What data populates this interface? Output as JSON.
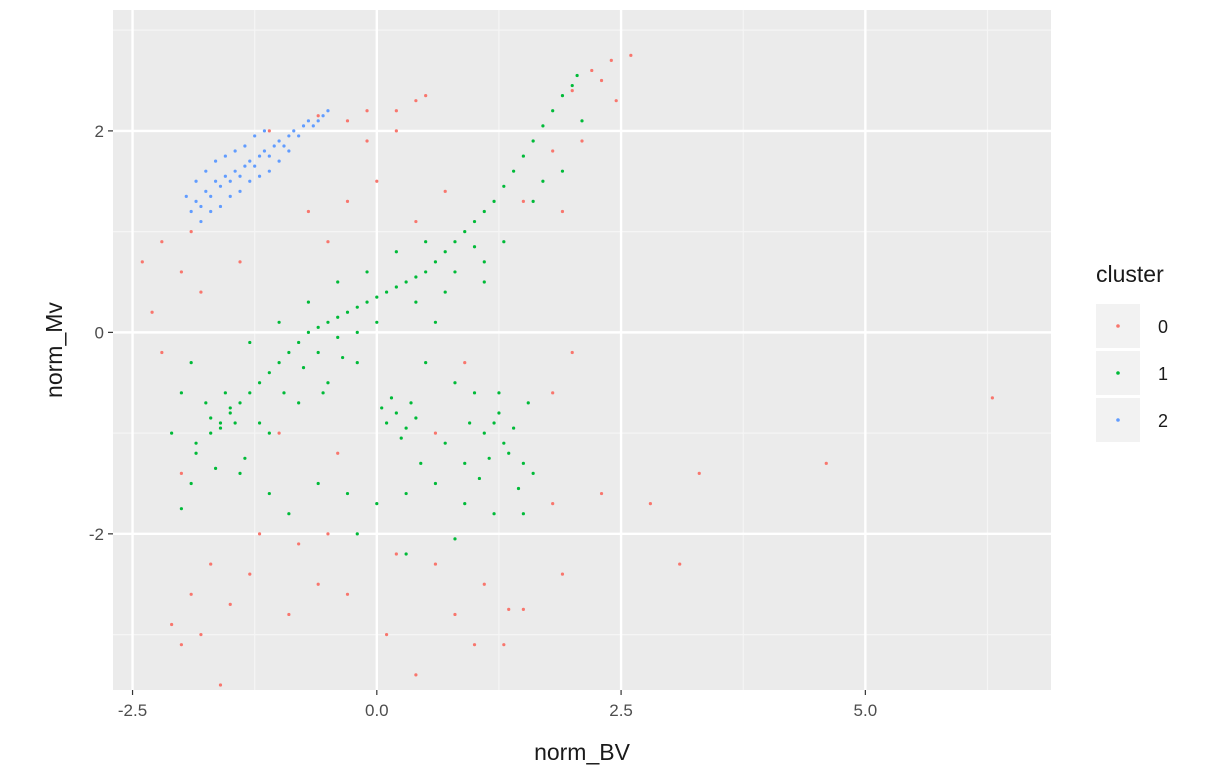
{
  "chart_data": {
    "type": "scatter",
    "xlabel": "norm_BV",
    "ylabel": "norm_Mv",
    "xlim": [
      -2.7,
      6.9
    ],
    "ylim": [
      3.2,
      -3.55
    ],
    "y_reversed": true,
    "x_ticks": [
      -2.5,
      0.0,
      2.5,
      5.0
    ],
    "x_tick_labels": [
      "-2.5",
      "0.0",
      "2.5",
      "5.0"
    ],
    "y_ticks": [
      -2,
      0,
      2
    ],
    "y_tick_labels": [
      "-2",
      "0",
      "2"
    ],
    "grid": true,
    "legend": {
      "title": "cluster",
      "placement": "right"
    },
    "series": [
      {
        "name": "0",
        "color": "#F8766D",
        "points": [
          [
            -2.1,
            -2.9
          ],
          [
            -2.0,
            -3.1
          ],
          [
            -1.8,
            -3.0
          ],
          [
            -1.6,
            -3.5
          ],
          [
            -1.9,
            -2.6
          ],
          [
            -1.5,
            -2.7
          ],
          [
            -1.3,
            -2.4
          ],
          [
            -1.7,
            -2.3
          ],
          [
            -0.9,
            -2.8
          ],
          [
            -0.6,
            -2.5
          ],
          [
            -0.3,
            -2.6
          ],
          [
            0.1,
            -3.0
          ],
          [
            0.4,
            -3.4
          ],
          [
            0.8,
            -2.8
          ],
          [
            1.0,
            -3.1
          ],
          [
            1.3,
            -3.1
          ],
          [
            1.35,
            -2.75
          ],
          [
            1.5,
            -2.75
          ],
          [
            1.1,
            -2.5
          ],
          [
            0.6,
            -2.3
          ],
          [
            -1.2,
            -2.0
          ],
          [
            -0.8,
            -2.1
          ],
          [
            -0.5,
            -2.0
          ],
          [
            0.2,
            -2.2
          ],
          [
            1.9,
            -2.4
          ],
          [
            1.8,
            -1.7
          ],
          [
            2.3,
            -1.6
          ],
          [
            2.8,
            -1.7
          ],
          [
            3.1,
            -2.3
          ],
          [
            3.3,
            -1.4
          ],
          [
            4.6,
            -1.3
          ],
          [
            6.3,
            -0.65
          ],
          [
            -2.2,
            -0.2
          ],
          [
            -2.3,
            0.2
          ],
          [
            -2.4,
            0.7
          ],
          [
            -2.0,
            0.6
          ],
          [
            -1.4,
            0.7
          ],
          [
            -1.9,
            1.0
          ],
          [
            -2.2,
            0.9
          ],
          [
            -1.8,
            0.4
          ],
          [
            -0.5,
            0.9
          ],
          [
            -0.7,
            1.2
          ],
          [
            -0.3,
            1.3
          ],
          [
            0.0,
            1.5
          ],
          [
            0.4,
            1.1
          ],
          [
            0.7,
            1.4
          ],
          [
            -0.3,
            2.1
          ],
          [
            -0.1,
            2.2
          ],
          [
            0.2,
            2.2
          ],
          [
            0.4,
            2.3
          ],
          [
            0.5,
            2.35
          ],
          [
            0.2,
            2.0
          ],
          [
            -0.1,
            1.9
          ],
          [
            1.5,
            1.3
          ],
          [
            1.8,
            1.8
          ],
          [
            2.0,
            2.4
          ],
          [
            2.2,
            2.6
          ],
          [
            2.4,
            2.7
          ],
          [
            2.6,
            2.75
          ],
          [
            2.3,
            2.5
          ],
          [
            2.1,
            1.9
          ],
          [
            2.45,
            2.3
          ],
          [
            1.9,
            1.2
          ],
          [
            0.9,
            -0.3
          ],
          [
            -1.0,
            -1.0
          ],
          [
            -0.4,
            -1.2
          ],
          [
            0.6,
            -1.0
          ],
          [
            1.8,
            -0.6
          ],
          [
            2.0,
            -0.2
          ],
          [
            -2.0,
            -1.4
          ],
          [
            -1.1,
            2.0
          ],
          [
            -0.6,
            2.15
          ]
        ]
      },
      {
        "name": "1",
        "color": "#00BA38",
        "points": [
          [
            -2.0,
            -1.75
          ],
          [
            -1.9,
            -1.5
          ],
          [
            -1.85,
            -1.2
          ],
          [
            -1.7,
            -1.0
          ],
          [
            -1.6,
            -0.9
          ],
          [
            -1.5,
            -0.8
          ],
          [
            -1.4,
            -0.7
          ],
          [
            -1.3,
            -0.6
          ],
          [
            -1.2,
            -0.5
          ],
          [
            -1.1,
            -0.4
          ],
          [
            -1.0,
            -0.3
          ],
          [
            -0.9,
            -0.2
          ],
          [
            -0.8,
            -0.1
          ],
          [
            -0.7,
            0.0
          ],
          [
            -0.6,
            0.05
          ],
          [
            -0.5,
            0.1
          ],
          [
            -0.4,
            0.15
          ],
          [
            -0.3,
            0.2
          ],
          [
            -0.2,
            0.25
          ],
          [
            -0.1,
            0.3
          ],
          [
            0.0,
            0.35
          ],
          [
            0.1,
            0.4
          ],
          [
            0.2,
            0.45
          ],
          [
            0.3,
            0.5
          ],
          [
            0.4,
            0.55
          ],
          [
            0.5,
            0.6
          ],
          [
            0.6,
            0.7
          ],
          [
            0.7,
            0.8
          ],
          [
            0.8,
            0.9
          ],
          [
            0.9,
            1.0
          ],
          [
            1.0,
            1.1
          ],
          [
            1.1,
            1.2
          ],
          [
            1.2,
            1.3
          ],
          [
            1.3,
            1.45
          ],
          [
            1.4,
            1.6
          ],
          [
            1.5,
            1.75
          ],
          [
            1.6,
            1.9
          ],
          [
            1.7,
            2.05
          ],
          [
            1.8,
            2.2
          ],
          [
            1.9,
            2.35
          ],
          [
            2.0,
            2.45
          ],
          [
            2.05,
            2.55
          ],
          [
            -1.7,
            -0.85
          ],
          [
            -1.6,
            -0.95
          ],
          [
            -1.5,
            -0.75
          ],
          [
            -1.75,
            -0.7
          ],
          [
            -1.55,
            -0.6
          ],
          [
            -1.45,
            -0.9
          ],
          [
            0.1,
            -0.9
          ],
          [
            0.2,
            -0.8
          ],
          [
            0.3,
            -0.95
          ],
          [
            0.35,
            -0.7
          ],
          [
            0.15,
            -0.65
          ],
          [
            0.25,
            -1.05
          ],
          [
            0.4,
            -0.85
          ],
          [
            0.05,
            -0.75
          ],
          [
            1.1,
            -1.0
          ],
          [
            1.2,
            -0.9
          ],
          [
            1.3,
            -1.1
          ],
          [
            1.4,
            -0.95
          ],
          [
            1.25,
            -0.8
          ],
          [
            1.35,
            -1.2
          ],
          [
            1.5,
            -1.3
          ],
          [
            1.15,
            -1.25
          ],
          [
            -0.9,
            -1.8
          ],
          [
            -0.6,
            -1.5
          ],
          [
            -0.3,
            -1.6
          ],
          [
            0.0,
            -1.7
          ],
          [
            0.3,
            -1.6
          ],
          [
            0.6,
            -1.5
          ],
          [
            0.9,
            -1.7
          ],
          [
            1.2,
            -1.8
          ],
          [
            1.5,
            -1.8
          ],
          [
            1.6,
            -1.4
          ],
          [
            0.8,
            -2.05
          ],
          [
            0.3,
            -2.2
          ],
          [
            -0.2,
            -2.0
          ],
          [
            -1.1,
            -1.6
          ],
          [
            -1.4,
            -1.4
          ],
          [
            -2.1,
            -1.0
          ],
          [
            -2.0,
            -0.6
          ],
          [
            -1.9,
            -0.3
          ],
          [
            -1.3,
            -0.1
          ],
          [
            -1.0,
            0.1
          ],
          [
            -0.7,
            0.3
          ],
          [
            -0.4,
            0.5
          ],
          [
            -0.1,
            0.6
          ],
          [
            0.2,
            0.8
          ],
          [
            0.5,
            0.9
          ],
          [
            0.8,
            0.6
          ],
          [
            1.1,
            0.5
          ],
          [
            1.3,
            0.9
          ],
          [
            1.6,
            1.3
          ],
          [
            1.7,
            1.5
          ],
          [
            2.1,
            2.1
          ],
          [
            1.9,
            1.6
          ],
          [
            -1.1,
            -1.0
          ],
          [
            -0.8,
            -0.7
          ],
          [
            -0.5,
            -0.5
          ],
          [
            -0.2,
            -0.3
          ],
          [
            0.5,
            -0.3
          ],
          [
            0.8,
            -0.5
          ],
          [
            1.0,
            -0.6
          ],
          [
            0.6,
            0.1
          ],
          [
            -0.6,
            -0.2
          ],
          [
            -0.4,
            -0.05
          ],
          [
            -0.2,
            0.0
          ],
          [
            0.0,
            0.1
          ],
          [
            0.4,
            0.3
          ],
          [
            0.7,
            0.4
          ],
          [
            1.0,
            0.85
          ],
          [
            1.1,
            0.7
          ],
          [
            -1.85,
            -1.1
          ],
          [
            -1.65,
            -1.35
          ],
          [
            -1.35,
            -1.25
          ],
          [
            -1.2,
            -0.9
          ],
          [
            -0.95,
            -0.6
          ],
          [
            -0.75,
            -0.35
          ],
          [
            -0.55,
            -0.6
          ],
          [
            -0.35,
            -0.25
          ],
          [
            0.45,
            -1.3
          ],
          [
            0.7,
            -1.1
          ],
          [
            0.9,
            -1.3
          ],
          [
            1.05,
            -1.45
          ],
          [
            1.45,
            -1.55
          ],
          [
            1.55,
            -0.7
          ],
          [
            1.25,
            -0.6
          ],
          [
            0.95,
            -0.9
          ]
        ]
      },
      {
        "name": "2",
        "color": "#619CFF",
        "points": [
          [
            -1.9,
            1.2
          ],
          [
            -1.85,
            1.3
          ],
          [
            -1.8,
            1.25
          ],
          [
            -1.75,
            1.4
          ],
          [
            -1.7,
            1.35
          ],
          [
            -1.65,
            1.5
          ],
          [
            -1.6,
            1.45
          ],
          [
            -1.55,
            1.55
          ],
          [
            -1.5,
            1.5
          ],
          [
            -1.45,
            1.6
          ],
          [
            -1.4,
            1.55
          ],
          [
            -1.35,
            1.65
          ],
          [
            -1.3,
            1.7
          ],
          [
            -1.25,
            1.65
          ],
          [
            -1.2,
            1.75
          ],
          [
            -1.15,
            1.8
          ],
          [
            -1.1,
            1.75
          ],
          [
            -1.05,
            1.85
          ],
          [
            -1.0,
            1.9
          ],
          [
            -0.95,
            1.85
          ],
          [
            -0.9,
            1.95
          ],
          [
            -0.85,
            2.0
          ],
          [
            -0.8,
            1.95
          ],
          [
            -0.75,
            2.05
          ],
          [
            -0.7,
            2.1
          ],
          [
            -0.65,
            2.05
          ],
          [
            -0.6,
            2.1
          ],
          [
            -0.55,
            2.15
          ],
          [
            -0.5,
            2.2
          ],
          [
            -1.8,
            1.1
          ],
          [
            -1.7,
            1.2
          ],
          [
            -1.6,
            1.25
          ],
          [
            -1.5,
            1.35
          ],
          [
            -1.4,
            1.4
          ],
          [
            -1.3,
            1.5
          ],
          [
            -1.2,
            1.55
          ],
          [
            -1.1,
            1.6
          ],
          [
            -1.0,
            1.7
          ],
          [
            -0.9,
            1.8
          ],
          [
            -1.95,
            1.35
          ],
          [
            -1.85,
            1.5
          ],
          [
            -1.75,
            1.6
          ],
          [
            -1.65,
            1.7
          ],
          [
            -1.55,
            1.75
          ],
          [
            -1.45,
            1.8
          ],
          [
            -1.35,
            1.85
          ],
          [
            -1.25,
            1.95
          ],
          [
            -1.15,
            2.0
          ]
        ]
      }
    ]
  }
}
